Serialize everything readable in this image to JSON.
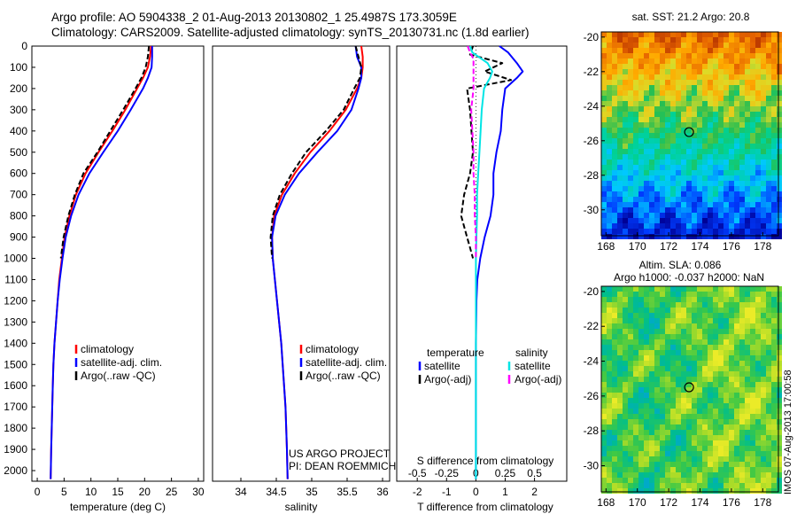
{
  "title": {
    "line1": "Argo profile: AO 5904338_2 01-Aug-2013 20130802_1 25.4987S 173.3059E",
    "line2": "Climatology: CARS2009. Satellite-adjusted climatology: synTS_20130731.nc (1.8d earlier)"
  },
  "stamp": "IMOS 07-Aug-2013 17:00:58",
  "colors": {
    "climatology": "#ff0000",
    "satellite": "#0000ff",
    "argo": "#000000",
    "cyan": "#00e5e5",
    "magenta": "#ff00ff"
  },
  "chart_data": [
    {
      "type": "line",
      "id": "temperature",
      "xlabel": "temperature (deg C)",
      "ylim": [
        2050,
        0
      ],
      "xlim": [
        -1,
        31
      ],
      "xticks": [
        0,
        5,
        10,
        15,
        20,
        25,
        30
      ],
      "yticks": [
        0,
        100,
        200,
        300,
        400,
        500,
        600,
        700,
        800,
        900,
        1000,
        1100,
        1200,
        1300,
        1400,
        1500,
        1600,
        1700,
        1800,
        1900,
        2000
      ],
      "legend": [
        "climatology",
        "satellite-adj. clim.",
        "Argo(..raw -QC)"
      ],
      "series": [
        {
          "name": "climatology",
          "color": "#ff0000",
          "depth": [
            0,
            50,
            100,
            150,
            200,
            300,
            400,
            500,
            600,
            700,
            800,
            900,
            1000,
            1100,
            1200,
            1300,
            1400,
            1500,
            1600,
            1700,
            1800,
            1900,
            2040
          ],
          "values": [
            21.2,
            21.0,
            20.6,
            19.7,
            18.6,
            16.4,
            14.0,
            11.4,
            9.0,
            7.2,
            6.0,
            5.1,
            4.6,
            4.1,
            3.8,
            3.5,
            3.2,
            3.0,
            2.9,
            2.8,
            2.7,
            2.6,
            2.5
          ]
        },
        {
          "name": "satellite-adj. clim.",
          "color": "#0000ff",
          "depth": [
            0,
            50,
            100,
            150,
            200,
            300,
            400,
            500,
            600,
            700,
            800,
            900,
            1000,
            1100,
            1200,
            1300,
            1400,
            1500,
            1600,
            1700,
            1800,
            1900,
            2040
          ],
          "values": [
            21.4,
            21.4,
            21.3,
            20.6,
            19.7,
            17.4,
            15.0,
            12.3,
            9.7,
            7.7,
            6.3,
            5.3,
            4.7,
            4.2,
            3.8,
            3.5,
            3.2,
            3.0,
            2.9,
            2.8,
            2.7,
            2.6,
            2.5
          ]
        },
        {
          "name": "Argo(..raw -QC)",
          "color": "#000000",
          "dashed": true,
          "depth": [
            0,
            50,
            100,
            150,
            200,
            300,
            400,
            500,
            600,
            700,
            800,
            900,
            1000
          ],
          "values": [
            20.8,
            20.6,
            20.2,
            19.4,
            18.3,
            16.0,
            13.6,
            11.2,
            8.6,
            7.0,
            5.8,
            4.9,
            4.4
          ]
        }
      ]
    },
    {
      "type": "line",
      "id": "salinity",
      "xlabel": "salinity",
      "ylim": [
        2050,
        0
      ],
      "xlim": [
        33.6,
        36.1
      ],
      "xticks": [
        34,
        34.5,
        35,
        35.5,
        36
      ],
      "legend": [
        "climatology",
        "satellite-adj. clim.",
        "Argo(..raw -QC)"
      ],
      "annotation": [
        "US ARGO PROJECT",
        "PI: DEAN ROEMMICH"
      ],
      "series": [
        {
          "name": "climatology",
          "color": "#ff0000",
          "depth": [
            0,
            50,
            100,
            150,
            200,
            300,
            400,
            500,
            600,
            700,
            800,
            900,
            1000,
            1100,
            1200,
            1300,
            1400,
            1500,
            1600,
            1700,
            1800,
            1900,
            2040
          ],
          "values": [
            35.7,
            35.72,
            35.72,
            35.7,
            35.64,
            35.48,
            35.25,
            34.98,
            34.76,
            34.58,
            34.47,
            34.44,
            34.45,
            34.48,
            34.51,
            34.54,
            34.57,
            34.59,
            34.61,
            34.63,
            34.64,
            34.65,
            34.66
          ]
        },
        {
          "name": "satellite-adj. clim.",
          "color": "#0000ff",
          "depth": [
            0,
            50,
            100,
            150,
            200,
            300,
            400,
            500,
            600,
            700,
            800,
            900,
            1000,
            1100,
            1200,
            1300,
            1400,
            1500,
            1600,
            1700,
            1800,
            1900,
            2040
          ],
          "values": [
            35.62,
            35.64,
            35.7,
            35.7,
            35.66,
            35.56,
            35.36,
            35.08,
            34.82,
            34.62,
            34.49,
            34.44,
            34.45,
            34.48,
            34.51,
            34.54,
            34.57,
            34.59,
            34.61,
            34.63,
            34.64,
            34.65,
            34.66
          ]
        },
        {
          "name": "Argo(..raw -QC)",
          "color": "#000000",
          "dashed": true,
          "depth": [
            0,
            50,
            100,
            150,
            200,
            300,
            400,
            500,
            600,
            700,
            800,
            900,
            1000
          ],
          "values": [
            35.62,
            35.66,
            35.7,
            35.68,
            35.6,
            35.45,
            35.2,
            34.92,
            34.72,
            34.55,
            34.45,
            34.42,
            34.44
          ]
        }
      ]
    },
    {
      "type": "line",
      "id": "differences",
      "xlabel": "T difference from climatology",
      "xlabel_top": "S difference from climatology",
      "xlim": [
        -2.7,
        3.1
      ],
      "xticks": [
        -2,
        -1,
        0,
        1,
        2
      ],
      "xticks_top": [
        -0.5,
        -0.25,
        0,
        0.25,
        0.5
      ],
      "ylim": [
        2050,
        0
      ],
      "legend_temperature": {
        "heading": "temperature",
        "items": [
          "satellite",
          "Argo(-adj)"
        ]
      },
      "legend_salinity": {
        "heading": "salinity",
        "items": [
          "satellite",
          "Argo(-adj)"
        ]
      },
      "series": [
        {
          "name": "T satellite",
          "color": "#0000ff",
          "depth": [
            0,
            30,
            80,
            120,
            150,
            200,
            300,
            400,
            500,
            600,
            700,
            800,
            900,
            1000,
            1100,
            1200,
            1400,
            1600,
            1800,
            2040
          ],
          "values": [
            0.8,
            1.1,
            1.4,
            1.6,
            1.4,
            1.0,
            0.9,
            0.85,
            0.7,
            0.6,
            0.6,
            0.5,
            0.3,
            0.15,
            0.05,
            0.02,
            0.0,
            0.0,
            0.0,
            0.0
          ]
        },
        {
          "name": "T Argo(-adj)",
          "color": "#000000",
          "dashed": true,
          "depth": [
            0,
            40,
            80,
            120,
            160,
            200,
            300,
            400,
            500,
            600,
            700,
            800,
            900,
            950,
            1000
          ],
          "values": [
            -0.1,
            -0.2,
            0.9,
            0.3,
            1.2,
            -0.3,
            -0.2,
            -0.15,
            -0.1,
            -0.2,
            -0.4,
            -0.5,
            -0.3,
            -0.2,
            -0.1
          ]
        },
        {
          "name": "S satellite",
          "color": "#00e5e5",
          "depth": [
            0,
            30,
            80,
            120,
            150,
            200,
            300,
            400,
            500,
            600,
            700,
            800,
            900,
            1000,
            1200,
            1400,
            1600,
            1800,
            2040
          ],
          "values": [
            -0.05,
            -0.03,
            0.1,
            0.14,
            0.12,
            0.07,
            0.05,
            0.04,
            0.03,
            0.02,
            0.01,
            0.01,
            0.005,
            0.0,
            0.0,
            0.0,
            0.0,
            0.0,
            0.0
          ]
        },
        {
          "name": "S Argo(-adj)",
          "color": "#ff00ff",
          "dashed": true,
          "depth": [
            0,
            30,
            60,
            120,
            200,
            300,
            400,
            500,
            600,
            700,
            800,
            900,
            1000
          ],
          "values": [
            -0.07,
            -0.05,
            -0.02,
            -0.02,
            -0.02,
            -0.04,
            -0.03,
            -0.02,
            -0.02,
            -0.01,
            -0.01,
            0.0,
            0.0
          ]
        }
      ]
    },
    {
      "type": "heatmap",
      "id": "sst-map",
      "title": "sat. SST: 21.2 Argo: 20.8",
      "xticks": [
        168,
        170,
        172,
        174,
        176,
        178
      ],
      "yticks": [
        -20,
        -22,
        -24,
        -26,
        -28,
        -30
      ],
      "xlim": [
        167.7,
        179
      ],
      "ylim": [
        -31.5,
        -19.7
      ],
      "marker": {
        "lon": 173.3,
        "lat": -25.5
      }
    },
    {
      "type": "heatmap",
      "id": "sla-map",
      "title": "Altim. SLA: 0.086",
      "title2": "Argo h1000: -0.037 h2000: NaN",
      "xticks": [
        168,
        170,
        172,
        174,
        176,
        178
      ],
      "yticks": [
        -20,
        -22,
        -24,
        -26,
        -28,
        -30
      ],
      "xlim": [
        167.7,
        179
      ],
      "ylim": [
        -31.5,
        -19.7
      ],
      "marker": {
        "lon": 173.3,
        "lat": -25.5
      }
    }
  ]
}
